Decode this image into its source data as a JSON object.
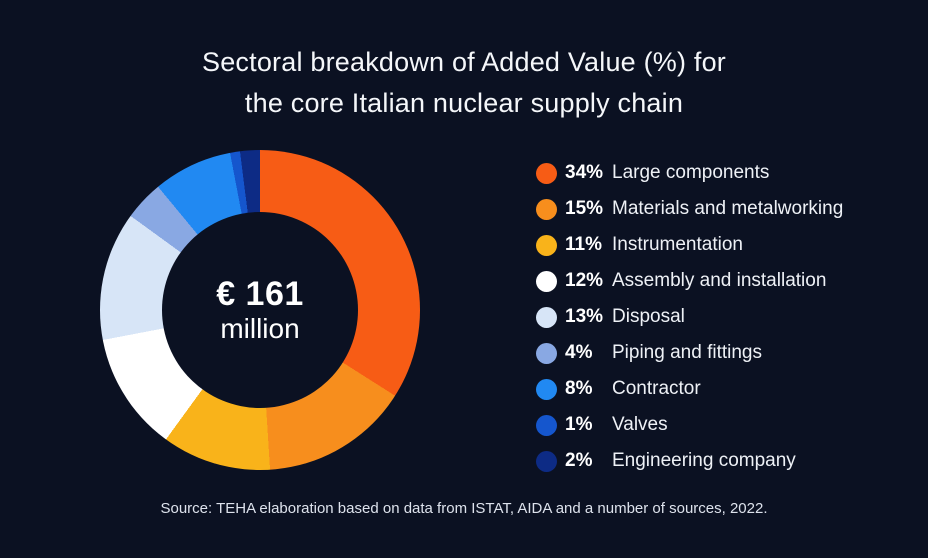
{
  "title": {
    "line1": "Sectoral breakdown of Added Value (%) for",
    "line2": "the core Italian nuclear supply chain"
  },
  "source": "Source: TEHA elaboration based on data from ISTAT, AIDA and a number of sources, 2022.",
  "colors": {
    "background": "#0b1122",
    "text": "#f5f7fa"
  },
  "chart_data": {
    "type": "pie",
    "variant": "donut",
    "title": "Sectoral breakdown of Added Value (%) for the core Italian nuclear supply chain",
    "center_value": "€ 161",
    "center_unit": "million",
    "start_angle_deg": 0,
    "direction": "clockwise",
    "legend_position": "right",
    "segments": [
      {
        "label": "Large components",
        "percent": 34,
        "percent_label": "34%",
        "color": "#f75c15"
      },
      {
        "label": "Materials and metalworking",
        "percent": 15,
        "percent_label": "15%",
        "color": "#f78e1d"
      },
      {
        "label": "Instrumentation",
        "percent": 11,
        "percent_label": "11%",
        "color": "#f9b31a"
      },
      {
        "label": "Assembly and installation",
        "percent": 12,
        "percent_label": "12%",
        "color": "#ffffff"
      },
      {
        "label": "Disposal",
        "percent": 13,
        "percent_label": "13%",
        "color": "#d7e5f7"
      },
      {
        "label": "Piping and fittings",
        "percent": 4,
        "percent_label": "4%",
        "color": "#89a8e3"
      },
      {
        "label": "Contractor",
        "percent": 8,
        "percent_label": "8%",
        "color": "#2189f2"
      },
      {
        "label": "Valves",
        "percent": 1,
        "percent_label": "1%",
        "color": "#1556cd"
      },
      {
        "label": "Engineering company",
        "percent": 2,
        "percent_label": "2%",
        "color": "#0d2b85"
      }
    ]
  }
}
